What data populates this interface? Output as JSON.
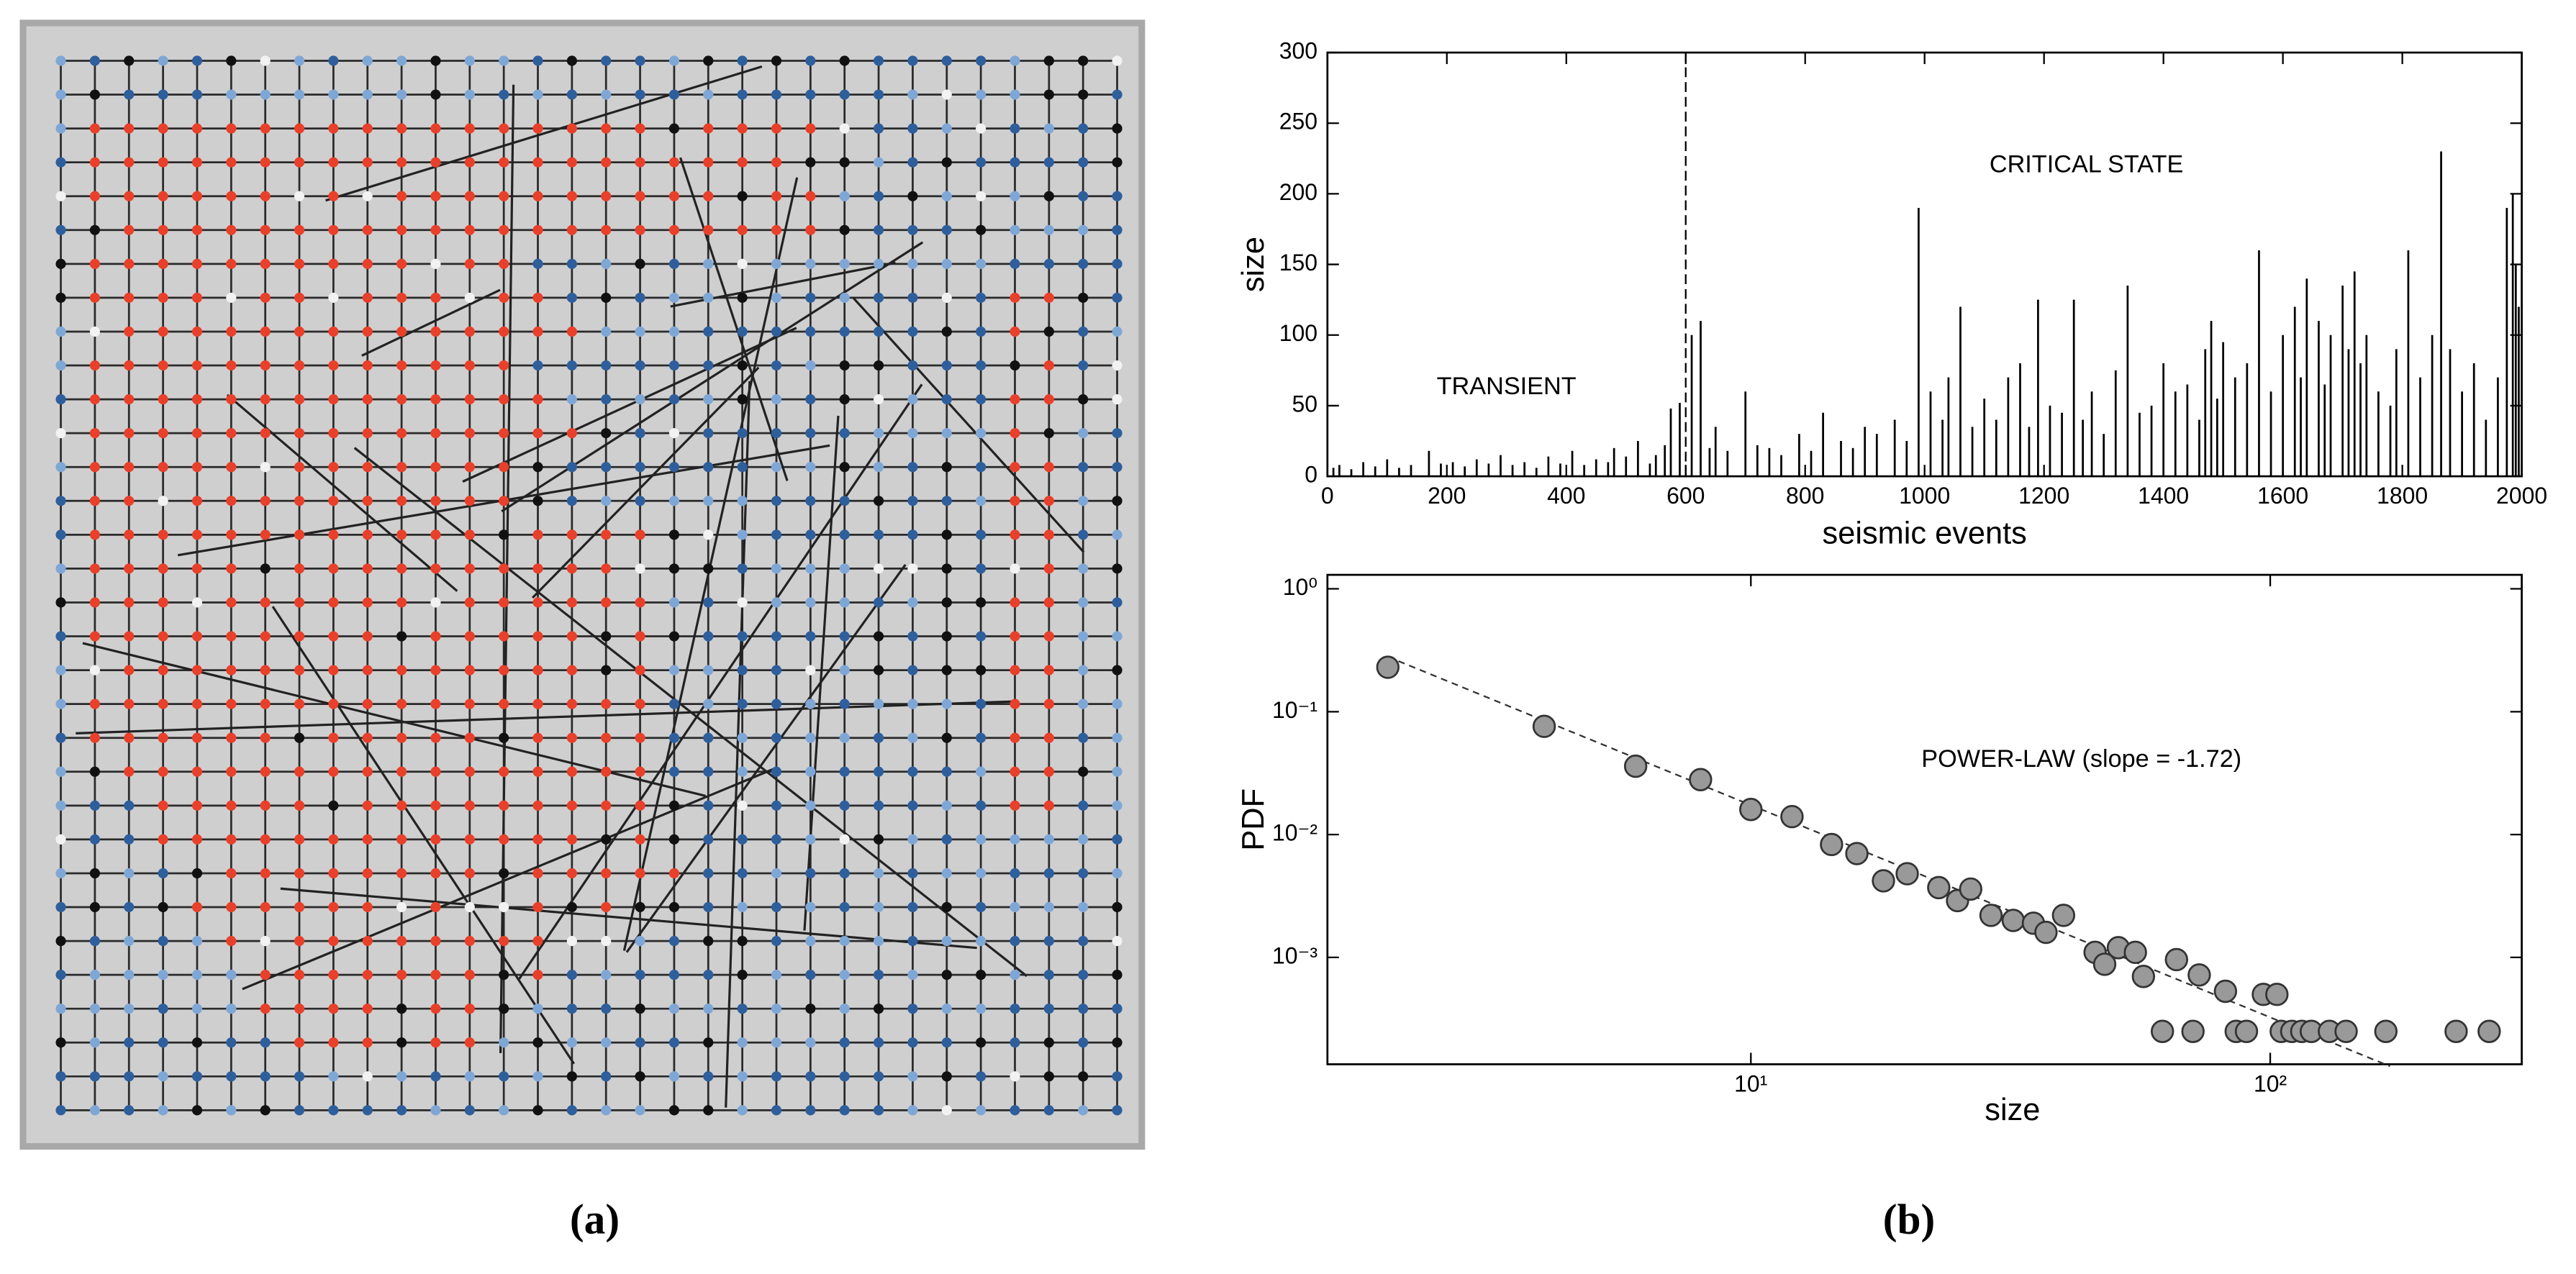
{
  "panel_labels": [
    "(a)",
    "(b)"
  ],
  "chart_data": [
    {
      "type": "spike",
      "xlabel": "seismic events",
      "ylabel": "size",
      "color": "#000000",
      "x": [
        10,
        20,
        40,
        60,
        80,
        100,
        120,
        140,
        170,
        190,
        210,
        230,
        250,
        270,
        290,
        310,
        330,
        350,
        370,
        390,
        410,
        430,
        450,
        470,
        480,
        500,
        520,
        540,
        550,
        565,
        575,
        590,
        610,
        625,
        640,
        650,
        670,
        700,
        720,
        740,
        760,
        790,
        810,
        830,
        860,
        880,
        900,
        920,
        950,
        970,
        990,
        1010,
        1030,
        1040,
        1060,
        1080,
        1100,
        1120,
        1140,
        1160,
        1175,
        1190,
        1210,
        1230,
        1250,
        1265,
        1280,
        1300,
        1320,
        1340,
        1360,
        1380,
        1400,
        1420,
        1440,
        1460,
        1470,
        1480,
        1490,
        1500,
        1520,
        1540,
        1560,
        1580,
        1600,
        1620,
        1630,
        1640,
        1660,
        1670,
        1680,
        1700,
        1710,
        1720,
        1730,
        1740,
        1760,
        1780,
        1790,
        1810,
        1830,
        1850,
        1865,
        1880,
        1900,
        1920,
        1940,
        1960,
        1975,
        1985,
        1990,
        1995
      ],
      "values": [
        6,
        8,
        5,
        10,
        7,
        12,
        6,
        8,
        18,
        9,
        10,
        7,
        12,
        9,
        15,
        8,
        10,
        6,
        14,
        9,
        18,
        8,
        12,
        10,
        20,
        14,
        25,
        9,
        15,
        22,
        48,
        52,
        100,
        110,
        20,
        35,
        18,
        60,
        22,
        20,
        15,
        30,
        18,
        45,
        25,
        20,
        35,
        30,
        40,
        25,
        190,
        60,
        40,
        70,
        120,
        35,
        55,
        40,
        70,
        80,
        35,
        125,
        50,
        45,
        125,
        40,
        60,
        30,
        75,
        135,
        45,
        50,
        80,
        60,
        65,
        40,
        90,
        110,
        55,
        95,
        70,
        80,
        160,
        60,
        100,
        120,
        70,
        140,
        110,
        65,
        100,
        135,
        90,
        145,
        80,
        100,
        60,
        50,
        90,
        160,
        70,
        100,
        230,
        90,
        60,
        80,
        40,
        70,
        190,
        200,
        150,
        120
      ],
      "xlim": [
        0,
        2000
      ],
      "ylim": [
        0,
        300
      ],
      "xticks": [
        0,
        200,
        400,
        600,
        800,
        1000,
        1200,
        1400,
        1600,
        1800,
        2000
      ],
      "yticks": [
        0,
        50,
        100,
        150,
        200,
        250,
        300
      ],
      "divider_x": 600,
      "annotations": [
        "TRANSIENT",
        "CRITICAL STATE"
      ]
    },
    {
      "type": "scatter",
      "xlabel": "size",
      "ylabel": "PDF",
      "color": "#999999",
      "log_x": true,
      "log_y": true,
      "x": [
        2,
        4,
        6,
        8,
        10,
        12,
        14.3,
        16,
        18,
        20,
        23,
        25,
        26.5,
        29,
        32,
        35,
        37,
        40,
        46,
        48,
        51,
        55,
        57,
        62,
        66,
        73,
        71,
        82,
        86,
        90,
        97,
        103,
        105,
        110,
        115,
        120,
        130,
        140,
        167,
        228,
        264
      ],
      "values": [
        0.23,
        0.076,
        0.036,
        0.028,
        0.016,
        0.014,
        0.0083,
        0.007,
        0.0042,
        0.0048,
        0.0037,
        0.0029,
        0.0036,
        0.0022,
        0.002,
        0.0019,
        0.0016,
        0.0022,
        0.0011,
        0.00088,
        0.0012,
        0.0011,
        0.0007,
        0.00025,
        0.00096,
        0.00072,
        0.00025,
        0.00053,
        0.00025,
        0.00025,
        0.0005,
        0.0005,
        0.00025,
        0.00025,
        0.00025,
        0.00025,
        0.00025,
        0.00025,
        0.00025,
        0.00025,
        0.00025
      ],
      "xlim": [
        1.53,
        305
      ],
      "ylim": [
        0.000135,
        1.3
      ],
      "xticks": [
        {
          "value": 10,
          "label": "10¹"
        },
        {
          "value": 100,
          "label": "10²"
        }
      ],
      "yticks": [
        {
          "value": 1,
          "label": "10⁰"
        },
        {
          "value": 0.1,
          "label": "10⁻¹"
        },
        {
          "value": 0.01,
          "label": "10⁻²"
        },
        {
          "value": 0.001,
          "label": "10⁻³"
        }
      ],
      "fit": {
        "x": [
          2,
          170
        ],
        "y": [
          0.28,
          0.00013
        ]
      },
      "annotations": [
        "POWER-LAW (slope = -1.72)"
      ]
    }
  ]
}
